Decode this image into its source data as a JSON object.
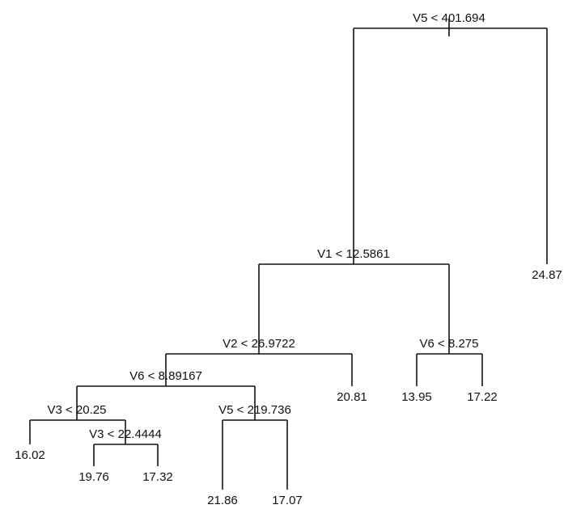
{
  "nodes": [
    {
      "label": "V5 < 401.694"
    },
    {
      "label": "V1 < 12.5861"
    },
    {
      "label": "24.87"
    },
    {
      "label": "V2 < 26.9722"
    },
    {
      "label": "V6 < 8.275"
    },
    {
      "label": "V6 < 8.89167"
    },
    {
      "label": "20.81"
    },
    {
      "label": "V3 < 20.25"
    },
    {
      "label": "V5 < 219.736"
    },
    {
      "label": "16.02"
    },
    {
      "label": "V3 < 22.4444"
    },
    {
      "label": "19.76"
    },
    {
      "label": "17.32"
    },
    {
      "label": "21.86"
    },
    {
      "label": "17.07"
    },
    {
      "label": "13.95"
    },
    {
      "label": "17.22"
    }
  ]
}
